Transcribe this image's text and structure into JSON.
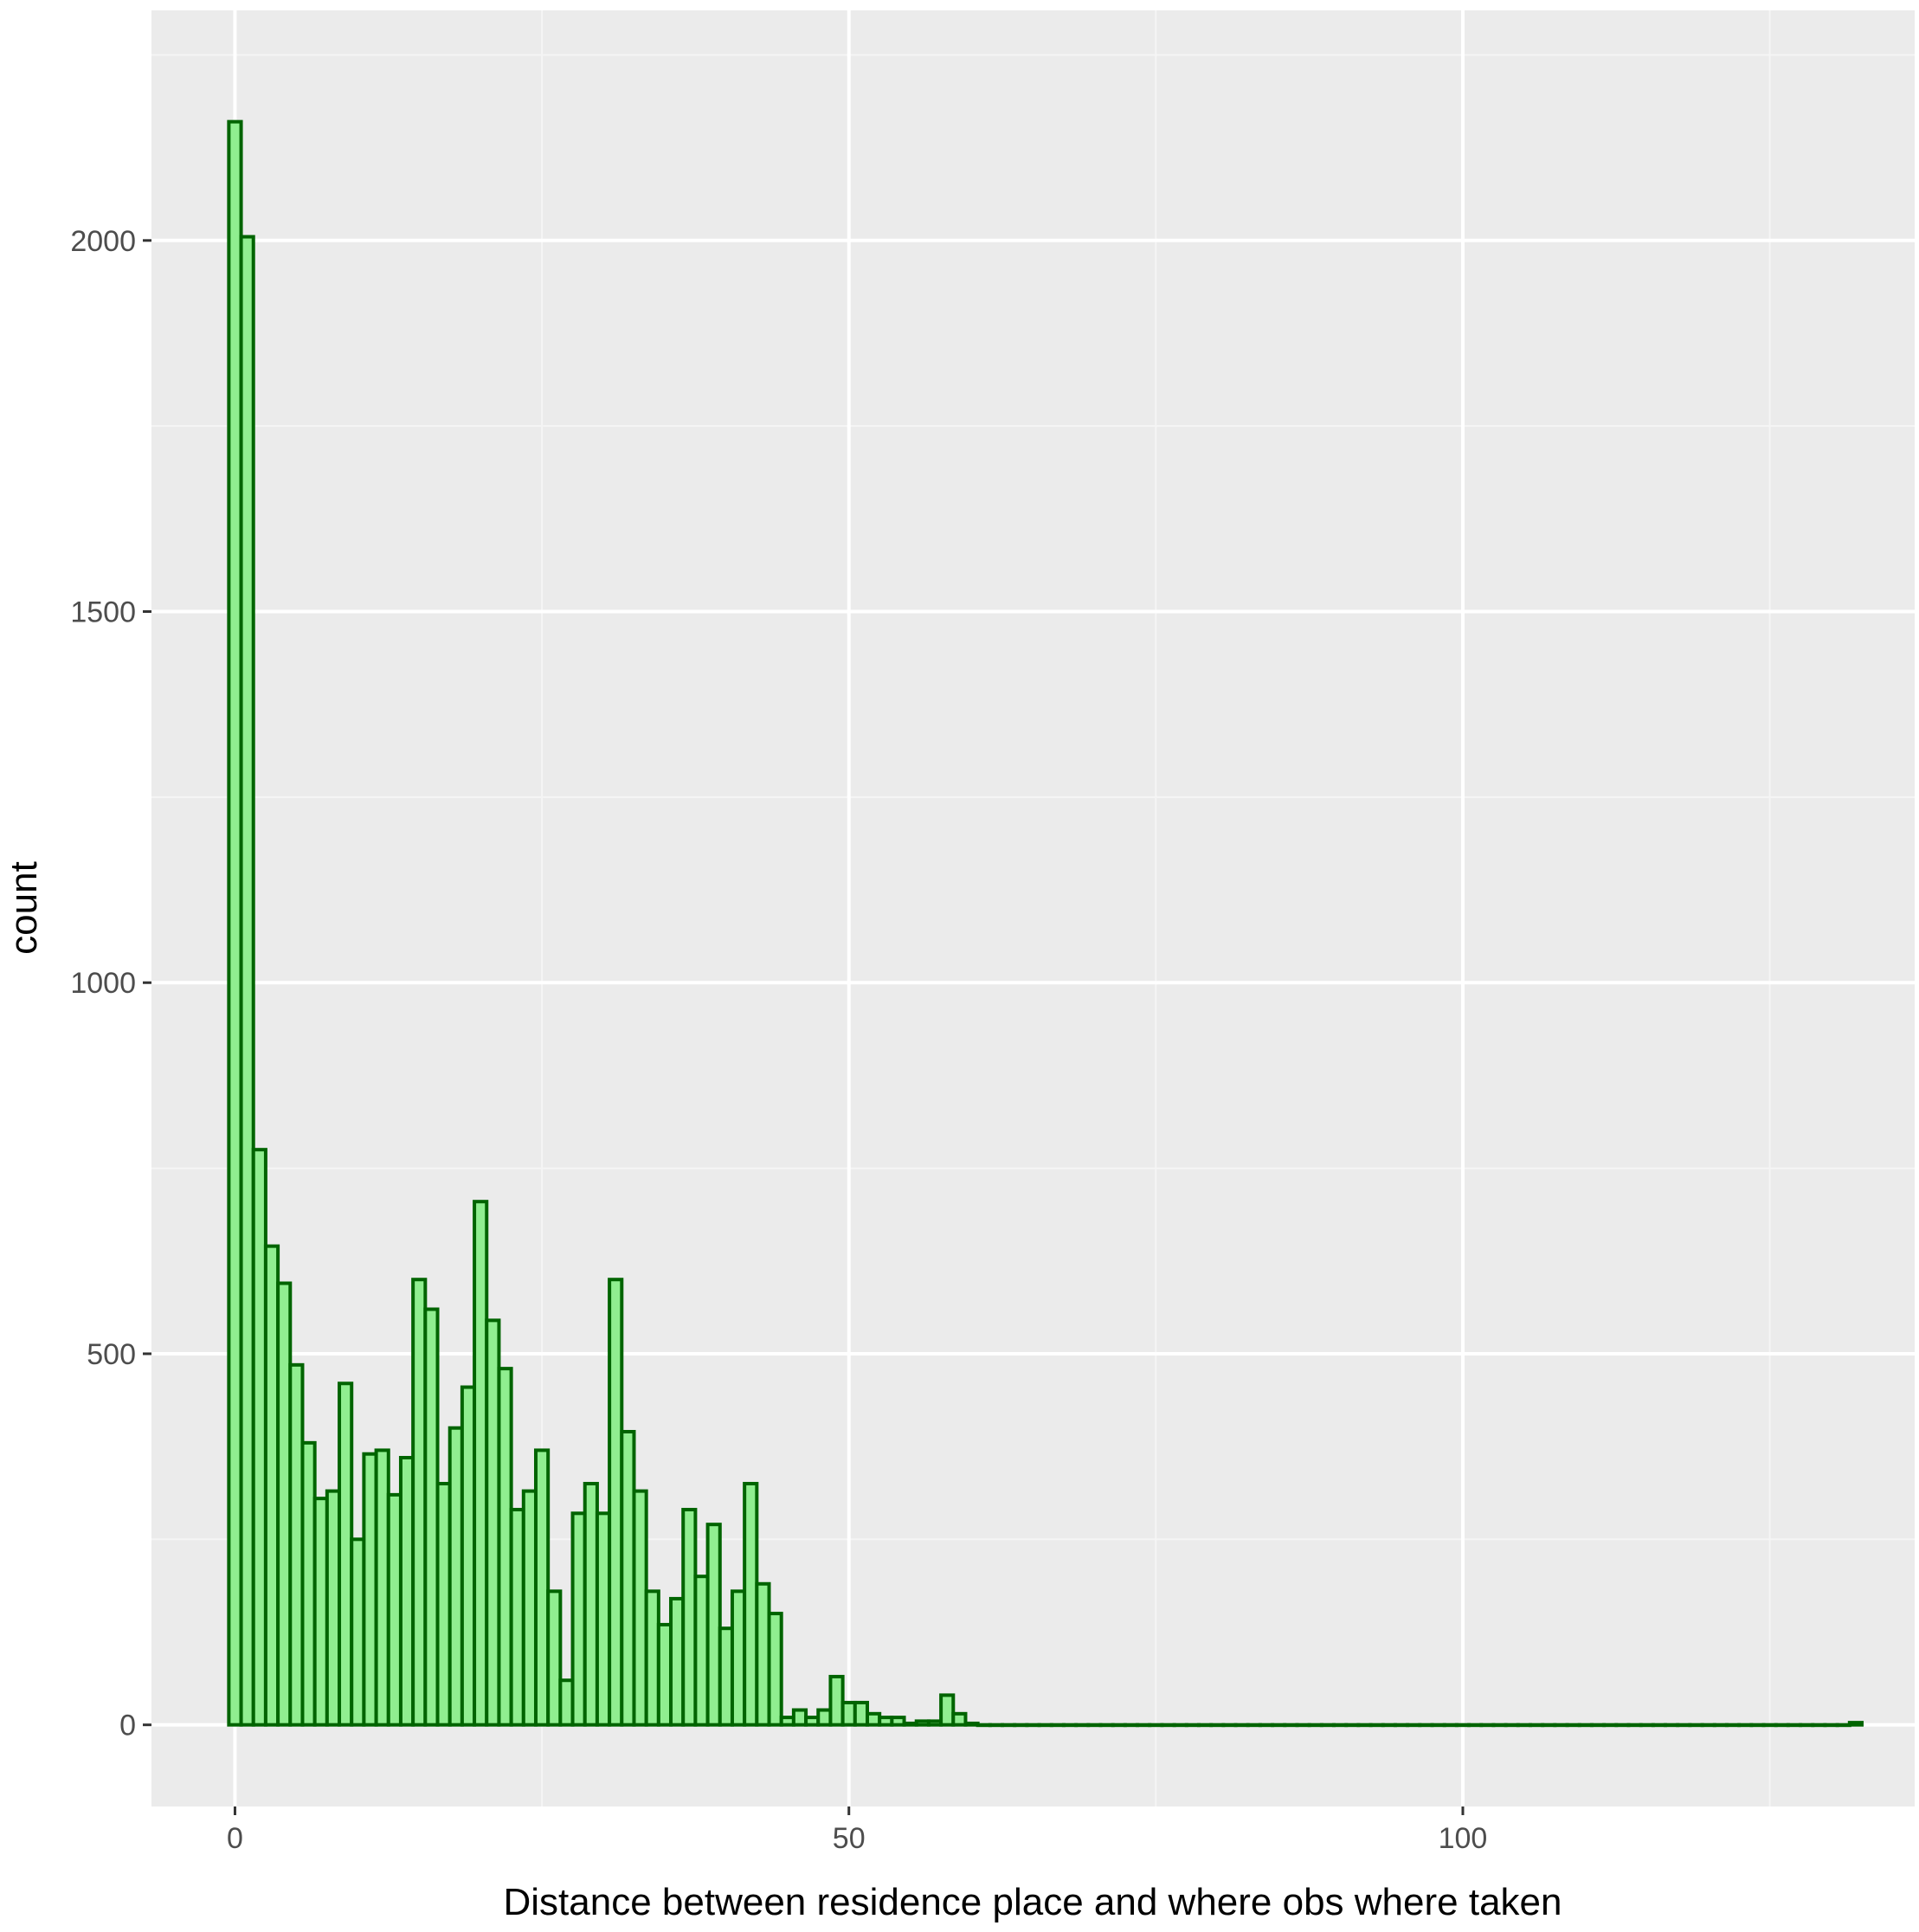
{
  "chart_data": {
    "type": "bar",
    "subtype": "histogram",
    "title": "",
    "xlabel": "Distance between residence place and where obs where taken",
    "ylabel": "count",
    "xlim": [
      -6.8,
      136.8
    ],
    "ylim": [
      -110,
      2310
    ],
    "x_ticks": [
      0,
      50,
      100
    ],
    "x_tick_labels": [
      "0",
      "50",
      "100"
    ],
    "y_ticks": [
      0,
      500,
      1000,
      1500,
      2000
    ],
    "y_tick_labels": [
      "0",
      "500",
      "1000",
      "1500",
      "2000"
    ],
    "grid": true,
    "legend": "none",
    "bin_width": 1,
    "x": [
      0,
      1,
      2,
      3,
      4,
      5,
      6,
      7,
      8,
      9,
      10,
      11,
      12,
      13,
      14,
      15,
      16,
      17,
      18,
      19,
      20,
      21,
      22,
      23,
      24,
      25,
      26,
      27,
      28,
      29,
      30,
      31,
      32,
      33,
      34,
      35,
      36,
      37,
      38,
      39,
      40,
      41,
      42,
      43,
      44,
      45,
      46,
      47,
      48,
      49,
      50,
      51,
      52,
      53,
      54,
      55,
      56,
      57,
      58,
      59,
      60,
      61,
      62,
      63,
      64,
      65,
      66,
      67,
      68,
      69,
      70,
      71,
      72,
      73,
      74,
      75,
      76,
      77,
      78,
      79,
      80,
      81,
      82,
      83,
      84,
      85,
      86,
      87,
      88,
      89,
      90,
      91,
      92,
      93,
      94,
      95,
      96,
      97,
      98,
      99,
      100,
      101,
      102,
      103,
      104,
      105,
      106,
      107,
      108,
      109,
      110,
      111,
      112,
      113,
      114,
      115,
      116,
      117,
      118,
      119,
      120,
      121,
      122,
      123,
      124,
      125,
      126,
      127,
      128,
      129,
      130,
      131,
      132
    ],
    "values": [
      2160,
      2005,
      775,
      645,
      595,
      485,
      380,
      305,
      315,
      460,
      250,
      365,
      370,
      310,
      360,
      600,
      560,
      325,
      400,
      455,
      705,
      545,
      480,
      290,
      315,
      370,
      180,
      60,
      285,
      325,
      285,
      600,
      395,
      315,
      180,
      135,
      170,
      290,
      200,
      270,
      130,
      180,
      325,
      190,
      150,
      10,
      20,
      10,
      20,
      65,
      30,
      30,
      15,
      10,
      10,
      2,
      5,
      5,
      40,
      15,
      2,
      0,
      0,
      0,
      0,
      0,
      0,
      0,
      0,
      0,
      0,
      0,
      0,
      0,
      0,
      0,
      0,
      0,
      0,
      0,
      0,
      0,
      0,
      0,
      0,
      0,
      0,
      0,
      0,
      0,
      0,
      0,
      0,
      0,
      0,
      0,
      0,
      0,
      0,
      0,
      0,
      0,
      0,
      0,
      0,
      0,
      0,
      0,
      0,
      0,
      0,
      0,
      0,
      0,
      0,
      0,
      0,
      0,
      0,
      0,
      0,
      0,
      0,
      0,
      0,
      0,
      0,
      0,
      0,
      0,
      0,
      0,
      3
    ],
    "colors": {
      "panel_background": "#ebebeb",
      "grid_major": "#ffffff",
      "grid_minor": "#f5f5f5",
      "bar_fill": "#90ee90",
      "bar_outline": "#006400",
      "tick_text": "#4d4d4d",
      "axis_title": "#000000"
    }
  }
}
